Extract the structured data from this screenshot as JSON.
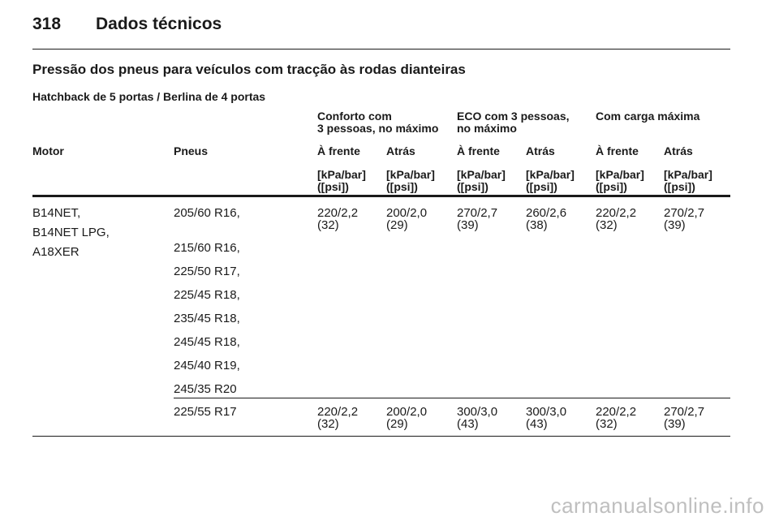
{
  "header": {
    "page_number": "318",
    "title": "Dados técnicos"
  },
  "section": {
    "title": "Pressão dos pneus para veículos com tracção às rodas dianteiras",
    "subtitle": "Hatchback de 5 portas / Berlina de 4 portas"
  },
  "table": {
    "groups": [
      {
        "line1": "Conforto com",
        "line2": "3 pessoas, no máximo"
      },
      {
        "line1": "ECO com 3 pessoas,",
        "line2": "no máximo"
      },
      {
        "line1": "Com carga máxima",
        "line2": ""
      }
    ],
    "columns": [
      "Motor",
      "Pneus",
      "À frente",
      "Atrás",
      "À frente",
      "Atrás",
      "À frente",
      "Atrás"
    ],
    "unit_line1": "[kPa/bar]",
    "unit_line2": "([psi])",
    "motor": [
      "B14NET,",
      "B14NET LPG,",
      "A18XER"
    ],
    "row1": {
      "tyres": [
        "205/60 R16,",
        "215/60 R16,",
        "225/50 R17,",
        "225/45 R18,",
        "235/45 R18,",
        "245/45 R18,",
        "245/40 R19,",
        "245/35 R20"
      ],
      "values": [
        {
          "bar": "220/2,2",
          "psi": "(32)"
        },
        {
          "bar": "200/2,0",
          "psi": "(29)"
        },
        {
          "bar": "270/2,7",
          "psi": "(39)"
        },
        {
          "bar": "260/2,6",
          "psi": "(38)"
        },
        {
          "bar": "220/2,2",
          "psi": "(32)"
        },
        {
          "bar": "270/2,7",
          "psi": "(39)"
        }
      ]
    },
    "row2": {
      "tyres": "225/55 R17",
      "values": [
        {
          "bar": "220/2,2",
          "psi": "(32)"
        },
        {
          "bar": "200/2,0",
          "psi": "(29)"
        },
        {
          "bar": "300/3,0",
          "psi": "(43)"
        },
        {
          "bar": "300/3,0",
          "psi": "(43)"
        },
        {
          "bar": "220/2,2",
          "psi": "(32)"
        },
        {
          "bar": "270/2,7",
          "psi": "(39)"
        }
      ]
    }
  },
  "watermark": "carmanualsonline.info"
}
